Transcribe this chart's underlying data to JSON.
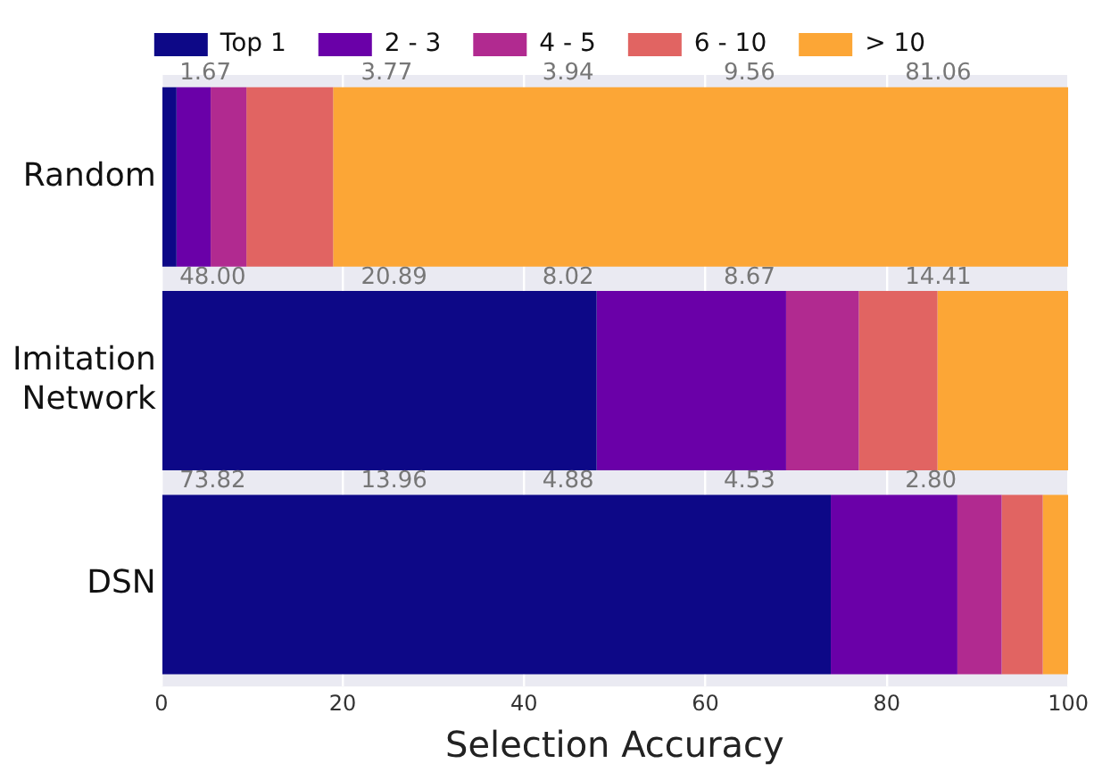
{
  "chart_data": {
    "type": "bar",
    "orientation": "horizontal",
    "stacked": true,
    "xlabel": "Selection Accuracy",
    "categories": [
      "Random",
      "Imitation\nNetwork",
      "DSN"
    ],
    "series": [
      {
        "name": "Top 1",
        "color": "#0d0887",
        "values": [
          1.67,
          48.0,
          73.82
        ]
      },
      {
        "name": "2 - 3",
        "color": "#6a00a8",
        "values": [
          3.77,
          20.89,
          13.96
        ]
      },
      {
        "name": "4 - 5",
        "color": "#b12a90",
        "values": [
          3.94,
          8.02,
          4.88
        ]
      },
      {
        "name": "6 - 10",
        "color": "#e16462",
        "values": [
          9.56,
          8.67,
          4.53
        ]
      },
      {
        "name": "> 10",
        "color": "#fca636",
        "values": [
          81.06,
          14.41,
          2.8
        ]
      }
    ],
    "value_labels": [
      [
        "1.67",
        "3.77",
        "3.94",
        "9.56",
        "81.06"
      ],
      [
        "48.00",
        "20.89",
        "8.02",
        "8.67",
        "14.41"
      ],
      [
        "73.82",
        "13.96",
        "4.88",
        "4.53",
        "2.80"
      ]
    ],
    "xlim": [
      0,
      100
    ],
    "xticks": [
      0,
      20,
      40,
      60,
      80,
      100
    ],
    "grid": "x",
    "legend": "top"
  }
}
